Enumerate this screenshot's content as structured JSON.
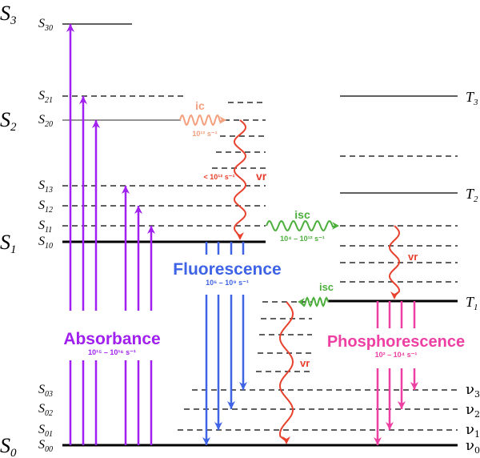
{
  "singlet_states": [
    {
      "label": "S",
      "sub": "0"
    },
    {
      "label": "S",
      "sub": "1"
    },
    {
      "label": "S",
      "sub": "2"
    },
    {
      "label": "S",
      "sub": "3"
    }
  ],
  "singlet_sublevels": [
    {
      "label": "S",
      "sub": "30"
    },
    {
      "label": "S",
      "sub": "21"
    },
    {
      "label": "S",
      "sub": "20"
    },
    {
      "label": "S",
      "sub": "13"
    },
    {
      "label": "S",
      "sub": "12"
    },
    {
      "label": "S",
      "sub": "11"
    },
    {
      "label": "S",
      "sub": "10"
    },
    {
      "label": "S",
      "sub": "03"
    },
    {
      "label": "S",
      "sub": "02"
    },
    {
      "label": "S",
      "sub": "01"
    },
    {
      "label": "S",
      "sub": "00"
    }
  ],
  "triplet_states": [
    {
      "label": "T",
      "sub": "1"
    },
    {
      "label": "T",
      "sub": "2"
    },
    {
      "label": "T",
      "sub": "3"
    }
  ],
  "vibrational_labels": [
    {
      "label": "ν",
      "sub": "0"
    },
    {
      "label": "ν",
      "sub": "1"
    },
    {
      "label": "ν",
      "sub": "2"
    },
    {
      "label": "ν",
      "sub": "3"
    }
  ],
  "processes": {
    "absorbance": {
      "label": "Absorbance",
      "rate": "10¹⁵ – 10¹⁶ s⁻¹",
      "color": "#a020f0"
    },
    "fluorescence": {
      "label": "Fluorescence",
      "rate": "10⁶ – 10⁹ s⁻¹",
      "color": "#3f63e6"
    },
    "phosphorescence": {
      "label": "Phosphorescence",
      "rate": "10² – 10⁴ s⁻¹",
      "color": "#ee3fa3"
    },
    "ic": {
      "label": "ic",
      "rate": "10¹² s⁻¹",
      "color": "#f4a07e"
    },
    "vr": {
      "label": "vr",
      "rate": "< 10¹² s⁻¹",
      "label2": "vr",
      "label3": "vr",
      "color": "#e8412e"
    },
    "isc": {
      "label": "isc",
      "rate": "10⁴ – 10¹² s⁻¹",
      "label2": "isc",
      "color": "#4cae3c"
    }
  }
}
